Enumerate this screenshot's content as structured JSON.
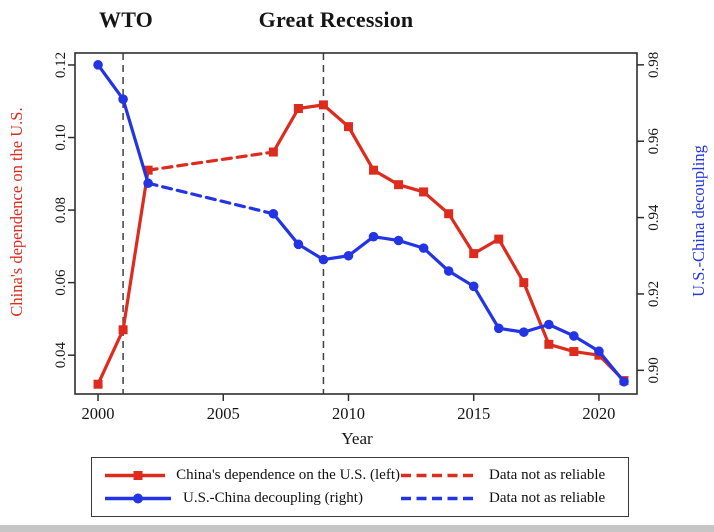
{
  "chart_data": {
    "type": "line",
    "xlabel": "Year",
    "x_range": [
      1999.08,
      2021.52
    ],
    "x_ticks": [
      {
        "value": 2000,
        "label": "2000"
      },
      {
        "value": 2005,
        "label": "2005"
      },
      {
        "value": 2010,
        "label": "2010"
      },
      {
        "value": 2015,
        "label": "2015"
      },
      {
        "value": 2020,
        "label": "2020"
      }
    ],
    "left_axis": {
      "label": "China's dependence on the U.S.",
      "color": "#dd2b1e",
      "range": [
        0.0293,
        0.1233
      ],
      "ticks": [
        {
          "value": 0.04,
          "label": "0.04"
        },
        {
          "value": 0.06,
          "label": "0.06"
        },
        {
          "value": 0.08,
          "label": "0.08"
        },
        {
          "value": 0.1,
          "label": "0.10"
        },
        {
          "value": 0.12,
          "label": "0.12"
        }
      ]
    },
    "right_axis": {
      "label": "U.S.-China decoupling",
      "color": "#2334e4",
      "range": [
        0.8938,
        0.9831
      ],
      "ticks": [
        {
          "value": 0.9,
          "label": "0.90"
        },
        {
          "value": 0.92,
          "label": "0.92"
        },
        {
          "value": 0.94,
          "label": "0.94"
        },
        {
          "value": 0.96,
          "label": "0.96"
        },
        {
          "value": 0.98,
          "label": "0.98"
        }
      ]
    },
    "reference_lines": [
      {
        "year": 2001,
        "label": "WTO"
      },
      {
        "year": 2009,
        "label": "Great Recession"
      }
    ],
    "series": [
      {
        "name": "China's dependence on the U.S. (left)",
        "axis": "left",
        "color": "#dd2b1e",
        "marker": "square",
        "dashed_between": [
          2002,
          2007
        ],
        "x": [
          2000,
          2001,
          2002,
          2007,
          2008,
          2009,
          2010,
          2011,
          2012,
          2013,
          2014,
          2015,
          2016,
          2017,
          2018,
          2019,
          2020,
          2021
        ],
        "values": [
          0.032,
          0.047,
          0.091,
          0.096,
          0.108,
          0.109,
          0.103,
          0.091,
          0.087,
          0.085,
          0.079,
          0.068,
          0.072,
          0.06,
          0.043,
          0.041,
          0.04,
          0.033
        ]
      },
      {
        "name": "U.S.-China decoupling (right)",
        "axis": "right",
        "color": "#2334e4",
        "marker": "circle",
        "dashed_between": [
          2002,
          2007
        ],
        "x": [
          2000,
          2001,
          2002,
          2007,
          2008,
          2009,
          2010,
          2011,
          2012,
          2013,
          2014,
          2015,
          2016,
          2017,
          2018,
          2019,
          2020,
          2021
        ],
        "values": [
          0.98,
          0.971,
          0.949,
          0.941,
          0.933,
          0.929,
          0.93,
          0.935,
          0.934,
          0.932,
          0.926,
          0.922,
          0.911,
          0.91,
          0.912,
          0.909,
          0.905,
          0.897
        ]
      }
    ]
  },
  "legend": {
    "entries": [
      {
        "label": "China's dependence on the U.S. (left)",
        "color": "#dd2b1e",
        "style": "solid",
        "marker": "square"
      },
      {
        "label": "U.S.-China decoupling (right)",
        "color": "#2334e4",
        "style": "solid",
        "marker": "circle"
      },
      {
        "label": "Data not as reliable",
        "color": "#dd2b1e",
        "style": "dashed"
      },
      {
        "label": "Data not as reliable",
        "color": "#2334e4",
        "style": "dashed"
      }
    ]
  }
}
